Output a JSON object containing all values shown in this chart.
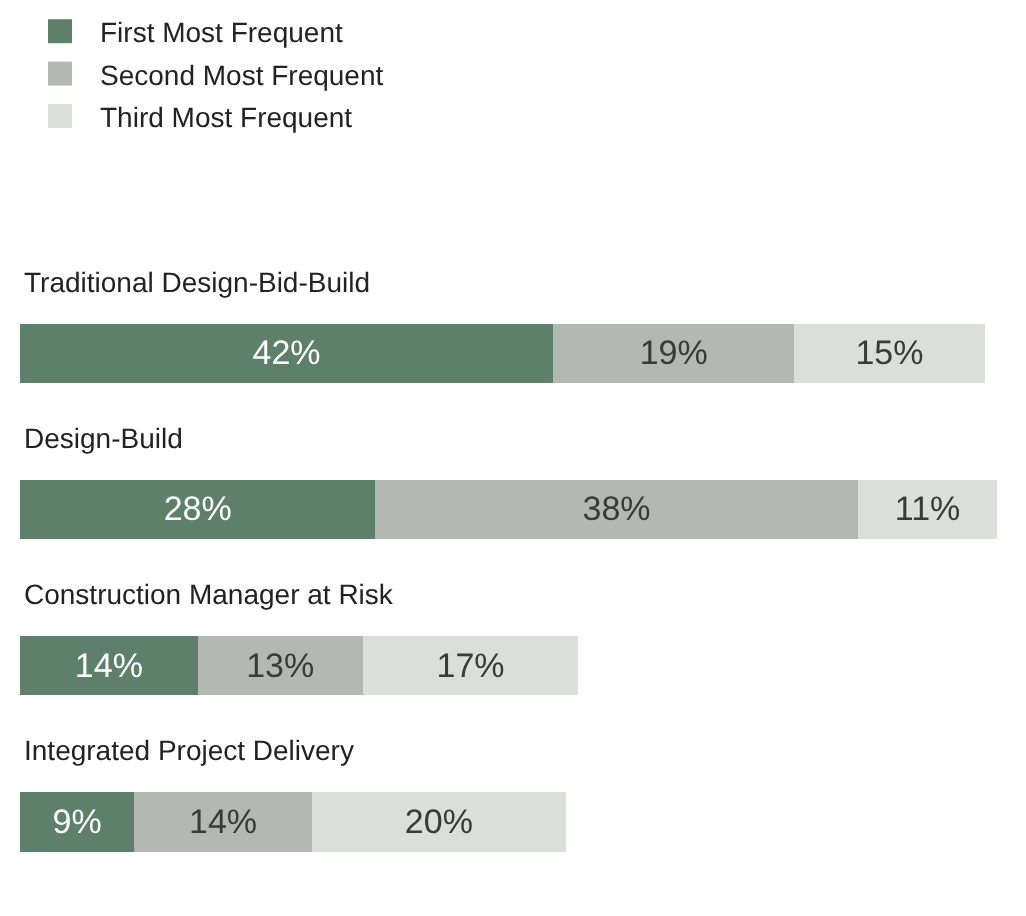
{
  "chart_data": {
    "type": "bar",
    "orientation": "horizontal",
    "stacked": true,
    "legend": "top left",
    "tick_labels": false,
    "categories": [
      "Traditional Design-Bid-Build",
      "Design-Build",
      "Construction Manager at Risk",
      "Integrated Project Delivery"
    ],
    "series": [
      {
        "name": "First Most Frequent",
        "color": "#5e7f69",
        "values": [
          42,
          28,
          14,
          9
        ],
        "value_labels": [
          "42%",
          "28%",
          "14%",
          "9%"
        ]
      },
      {
        "name": "Second Most Frequent",
        "color": "#b4b8b2",
        "values": [
          19,
          38,
          13,
          14
        ],
        "value_labels": [
          "19%",
          "38%",
          "13%",
          "14%"
        ]
      },
      {
        "name": "Third Most Frequent",
        "color": "#dcdedb",
        "values": [
          15,
          11,
          17,
          20
        ],
        "value_labels": [
          "15%",
          "11%",
          "17%",
          "20%"
        ]
      }
    ]
  }
}
